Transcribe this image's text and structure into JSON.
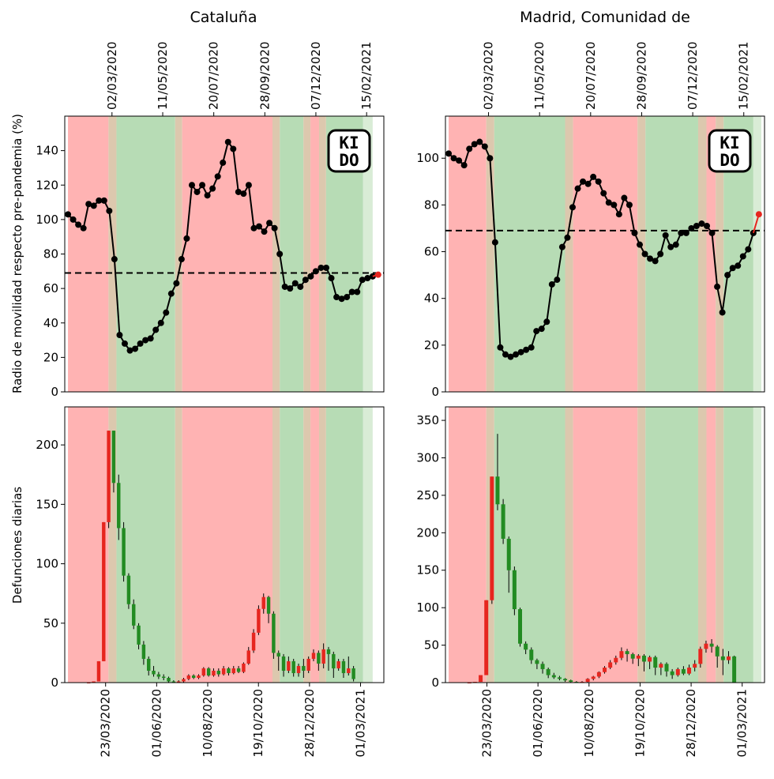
{
  "chart_data": [
    {
      "type": "line",
      "region": "Cataluña",
      "title": "Cataluña",
      "ylabel": "Radio de movilidad respecto pre-pandemia (%)",
      "ylim": [
        0,
        160
      ],
      "yticks": [
        0,
        20,
        40,
        60,
        80,
        100,
        120,
        140
      ],
      "xticks_top": [
        "02/03/2020",
        "11/05/2020",
        "20/07/2020",
        "28/09/2020",
        "07/12/2020",
        "15/02/2021"
      ],
      "threshold": 69,
      "values": [
        103,
        100,
        97,
        95,
        109,
        108,
        111,
        111,
        105,
        77,
        33,
        28,
        24,
        25,
        28,
        30,
        31,
        36,
        40,
        46,
        57,
        63,
        77,
        89,
        120,
        116,
        120,
        114,
        118,
        125,
        133,
        145,
        141,
        116,
        115,
        120,
        95,
        96,
        93,
        98,
        95,
        80,
        61,
        60,
        63,
        61,
        65,
        67,
        70,
        72,
        72,
        66,
        55,
        54,
        55,
        58,
        58,
        65,
        66,
        67
      ],
      "last_value": 68,
      "zones": [
        "red",
        "tan",
        "green",
        "tan",
        "red",
        "tan",
        "green",
        "tan",
        "red",
        "tan",
        "green",
        "lightgreen"
      ],
      "logo": {
        "top": "KI",
        "bottom": "DO"
      }
    },
    {
      "type": "line",
      "region": "Madrid, Comunidad de",
      "title": "Madrid, Comunidad de",
      "ylim": [
        0,
        118
      ],
      "yticks": [
        0,
        20,
        40,
        60,
        80,
        100
      ],
      "xticks_top": [
        "02/03/2020",
        "11/05/2020",
        "20/07/2020",
        "28/09/2020",
        "07/12/2020",
        "15/02/2021"
      ],
      "threshold": 69,
      "values": [
        102,
        100,
        99,
        97,
        104,
        106,
        107,
        105,
        100,
        64,
        19,
        16,
        15,
        16,
        17,
        18,
        19,
        26,
        27,
        30,
        46,
        48,
        62,
        66,
        79,
        87,
        90,
        89,
        92,
        90,
        85,
        81,
        80,
        76,
        83,
        80,
        68,
        63,
        59,
        57,
        56,
        59,
        67,
        62,
        63,
        68,
        68,
        70,
        71,
        72,
        71,
        68,
        45,
        34,
        50,
        53,
        54,
        58,
        61,
        68
      ],
      "last_value": 76,
      "zones": [
        "red",
        "tan",
        "green",
        "tan",
        "red",
        "tan",
        "green",
        "tan",
        "red",
        "tan",
        "green",
        "lightgreen"
      ],
      "logo": {
        "top": "KI",
        "bottom": "DO"
      }
    },
    {
      "type": "candlestick",
      "region": "Cataluña",
      "ylabel": "Defunciones diarias",
      "ylim": [
        0,
        232
      ],
      "yticks": [
        0,
        50,
        100,
        150,
        200
      ],
      "xticks_bottom": [
        "23/03/2020",
        "01/06/2020",
        "10/08/2020",
        "19/10/2020",
        "28/12/2020",
        "01/03/2021"
      ],
      "candles": [
        {
          "o": 0,
          "c": 0,
          "h": 0,
          "l": 0
        },
        {
          "o": 0,
          "c": 1,
          "h": 1,
          "l": 0
        },
        {
          "o": 1,
          "c": 18,
          "h": 18,
          "l": 1
        },
        {
          "o": 18,
          "c": 135,
          "h": 135,
          "l": 18
        },
        {
          "o": 135,
          "c": 212,
          "h": 212,
          "l": 130
        },
        {
          "o": 212,
          "c": 168,
          "h": 212,
          "l": 160
        },
        {
          "o": 168,
          "c": 130,
          "h": 175,
          "l": 120
        },
        {
          "o": 130,
          "c": 90,
          "h": 135,
          "l": 85
        },
        {
          "o": 90,
          "c": 66,
          "h": 92,
          "l": 62
        },
        {
          "o": 66,
          "c": 48,
          "h": 70,
          "l": 45
        },
        {
          "o": 48,
          "c": 32,
          "h": 50,
          "l": 28
        },
        {
          "o": 32,
          "c": 20,
          "h": 35,
          "l": 15
        },
        {
          "o": 20,
          "c": 10,
          "h": 22,
          "l": 6
        },
        {
          "o": 10,
          "c": 7,
          "h": 14,
          "l": 5
        },
        {
          "o": 7,
          "c": 5,
          "h": 9,
          "l": 3
        },
        {
          "o": 5,
          "c": 4,
          "h": 7,
          "l": 2
        },
        {
          "o": 4,
          "c": 1,
          "h": 5,
          "l": 0
        },
        {
          "o": 1,
          "c": 0,
          "h": 2,
          "l": 0
        },
        {
          "o": 0,
          "c": 1,
          "h": 2,
          "l": 0
        },
        {
          "o": 1,
          "c": 3,
          "h": 4,
          "l": 0
        },
        {
          "o": 3,
          "c": 6,
          "h": 7,
          "l": 2
        },
        {
          "o": 6,
          "c": 4,
          "h": 7,
          "l": 3
        },
        {
          "o": 4,
          "c": 6,
          "h": 7,
          "l": 3
        },
        {
          "o": 6,
          "c": 12,
          "h": 13,
          "l": 5
        },
        {
          "o": 12,
          "c": 6,
          "h": 13,
          "l": 5
        },
        {
          "o": 6,
          "c": 10,
          "h": 12,
          "l": 5
        },
        {
          "o": 10,
          "c": 7,
          "h": 12,
          "l": 5
        },
        {
          "o": 7,
          "c": 12,
          "h": 14,
          "l": 6
        },
        {
          "o": 12,
          "c": 8,
          "h": 13,
          "l": 6
        },
        {
          "o": 8,
          "c": 12,
          "h": 14,
          "l": 7
        },
        {
          "o": 12,
          "c": 9,
          "h": 14,
          "l": 8
        },
        {
          "o": 9,
          "c": 16,
          "h": 17,
          "l": 8
        },
        {
          "o": 16,
          "c": 27,
          "h": 30,
          "l": 15
        },
        {
          "o": 27,
          "c": 42,
          "h": 45,
          "l": 25
        },
        {
          "o": 42,
          "c": 62,
          "h": 65,
          "l": 40
        },
        {
          "o": 62,
          "c": 72,
          "h": 75,
          "l": 58
        },
        {
          "o": 72,
          "c": 58,
          "h": 73,
          "l": 50
        },
        {
          "o": 58,
          "c": 25,
          "h": 60,
          "l": 20
        },
        {
          "o": 25,
          "c": 22,
          "h": 27,
          "l": 10
        },
        {
          "o": 22,
          "c": 10,
          "h": 24,
          "l": 5
        },
        {
          "o": 10,
          "c": 18,
          "h": 22,
          "l": 8
        },
        {
          "o": 18,
          "c": 8,
          "h": 20,
          "l": 5
        },
        {
          "o": 8,
          "c": 14,
          "h": 16,
          "l": 5
        },
        {
          "o": 14,
          "c": 10,
          "h": 20,
          "l": 4
        },
        {
          "o": 10,
          "c": 20,
          "h": 22,
          "l": 8
        },
        {
          "o": 20,
          "c": 25,
          "h": 28,
          "l": 18
        },
        {
          "o": 25,
          "c": 16,
          "h": 27,
          "l": 10
        },
        {
          "o": 16,
          "c": 28,
          "h": 33,
          "l": 12
        },
        {
          "o": 28,
          "c": 24,
          "h": 30,
          "l": 10
        },
        {
          "o": 24,
          "c": 12,
          "h": 26,
          "l": 4
        },
        {
          "o": 12,
          "c": 18,
          "h": 20,
          "l": 10
        },
        {
          "o": 18,
          "c": 8,
          "h": 20,
          "l": 4
        },
        {
          "o": 8,
          "c": 12,
          "h": 22,
          "l": 6
        },
        {
          "o": 12,
          "c": 3,
          "h": 14,
          "l": 1
        }
      ],
      "zones": [
        "red",
        "tan",
        "green",
        "tan",
        "red",
        "tan",
        "green",
        "tan",
        "red",
        "tan",
        "green",
        "lightgreen"
      ]
    },
    {
      "type": "candlestick",
      "region": "Madrid, Comunidad de",
      "ylim": [
        0,
        368
      ],
      "yticks": [
        0,
        50,
        100,
        150,
        200,
        250,
        300,
        350
      ],
      "xticks_bottom": [
        "23/03/2020",
        "01/06/2020",
        "10/08/2020",
        "19/10/2020",
        "28/12/2020",
        "01/03/2021"
      ],
      "candles": [
        {
          "o": 0,
          "c": 0,
          "h": 0,
          "l": 0
        },
        {
          "o": 0,
          "c": 1,
          "h": 1,
          "l": 0
        },
        {
          "o": 1,
          "c": 10,
          "h": 10,
          "l": 1
        },
        {
          "o": 10,
          "c": 110,
          "h": 110,
          "l": 10
        },
        {
          "o": 110,
          "c": 275,
          "h": 275,
          "l": 105
        },
        {
          "o": 275,
          "c": 238,
          "h": 332,
          "l": 230
        },
        {
          "o": 238,
          "c": 192,
          "h": 245,
          "l": 185
        },
        {
          "o": 192,
          "c": 150,
          "h": 195,
          "l": 120
        },
        {
          "o": 150,
          "c": 98,
          "h": 155,
          "l": 90
        },
        {
          "o": 98,
          "c": 52,
          "h": 100,
          "l": 48
        },
        {
          "o": 52,
          "c": 44,
          "h": 55,
          "l": 38
        },
        {
          "o": 44,
          "c": 30,
          "h": 47,
          "l": 25
        },
        {
          "o": 30,
          "c": 25,
          "h": 32,
          "l": 18
        },
        {
          "o": 25,
          "c": 18,
          "h": 28,
          "l": 12
        },
        {
          "o": 18,
          "c": 10,
          "h": 20,
          "l": 6
        },
        {
          "o": 10,
          "c": 7,
          "h": 13,
          "l": 5
        },
        {
          "o": 7,
          "c": 5,
          "h": 9,
          "l": 3
        },
        {
          "o": 5,
          "c": 3,
          "h": 6,
          "l": 1
        },
        {
          "o": 3,
          "c": 1,
          "h": 4,
          "l": 0
        },
        {
          "o": 1,
          "c": 0,
          "h": 2,
          "l": 0
        },
        {
          "o": 0,
          "c": 1,
          "h": 2,
          "l": 0
        },
        {
          "o": 1,
          "c": 5,
          "h": 6,
          "l": 0
        },
        {
          "o": 5,
          "c": 8,
          "h": 9,
          "l": 3
        },
        {
          "o": 8,
          "c": 14,
          "h": 15,
          "l": 6
        },
        {
          "o": 14,
          "c": 20,
          "h": 22,
          "l": 12
        },
        {
          "o": 20,
          "c": 27,
          "h": 30,
          "l": 18
        },
        {
          "o": 27,
          "c": 33,
          "h": 36,
          "l": 24
        },
        {
          "o": 33,
          "c": 42,
          "h": 47,
          "l": 30
        },
        {
          "o": 42,
          "c": 38,
          "h": 45,
          "l": 28
        },
        {
          "o": 38,
          "c": 32,
          "h": 40,
          "l": 25
        },
        {
          "o": 32,
          "c": 36,
          "h": 38,
          "l": 22
        },
        {
          "o": 36,
          "c": 28,
          "h": 38,
          "l": 15
        },
        {
          "o": 28,
          "c": 34,
          "h": 36,
          "l": 18
        },
        {
          "o": 34,
          "c": 20,
          "h": 36,
          "l": 10
        },
        {
          "o": 20,
          "c": 25,
          "h": 27,
          "l": 10
        },
        {
          "o": 25,
          "c": 15,
          "h": 27,
          "l": 8
        },
        {
          "o": 15,
          "c": 10,
          "h": 18,
          "l": 5
        },
        {
          "o": 10,
          "c": 18,
          "h": 20,
          "l": 8
        },
        {
          "o": 18,
          "c": 12,
          "h": 22,
          "l": 10
        },
        {
          "o": 12,
          "c": 20,
          "h": 24,
          "l": 10
        },
        {
          "o": 20,
          "c": 25,
          "h": 30,
          "l": 15
        },
        {
          "o": 25,
          "c": 45,
          "h": 48,
          "l": 20
        },
        {
          "o": 45,
          "c": 52,
          "h": 56,
          "l": 40
        },
        {
          "o": 52,
          "c": 48,
          "h": 58,
          "l": 40
        },
        {
          "o": 48,
          "c": 35,
          "h": 50,
          "l": 20
        },
        {
          "o": 35,
          "c": 30,
          "h": 45,
          "l": 10
        },
        {
          "o": 30,
          "c": 35,
          "h": 42,
          "l": 25
        },
        {
          "o": 35,
          "c": 0,
          "h": 36,
          "l": 0
        }
      ],
      "zones": [
        "red",
        "tan",
        "green",
        "tan",
        "red",
        "tan",
        "green",
        "tan",
        "red",
        "tan",
        "green",
        "lightgreen"
      ]
    }
  ],
  "colors": {
    "red_zone": "#ffb3b3",
    "green_zone": "#b7dcb5",
    "tan_zone": "#dcc8ae",
    "light_green_zone": "#d9ecd6",
    "candle_up": "#e6261f",
    "candle_down": "#228b22",
    "line": "#000000",
    "last_point": "#e6261f"
  }
}
